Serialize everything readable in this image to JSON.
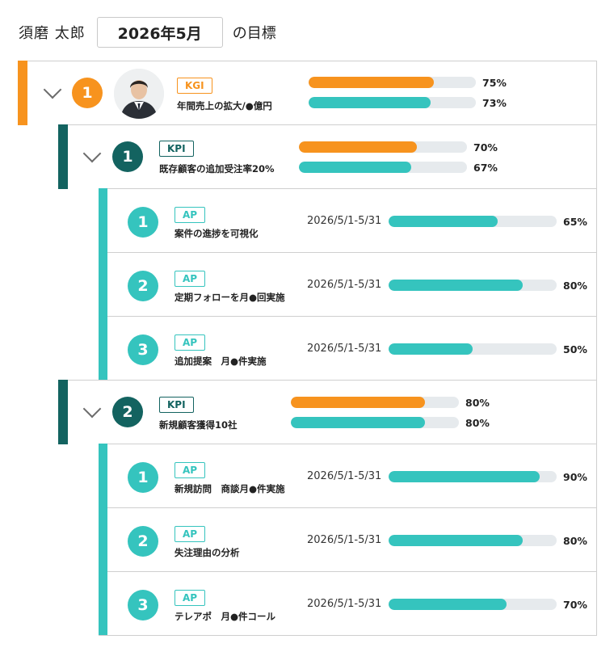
{
  "header": {
    "user_name": "須磨 太郎",
    "month": "2026年5月",
    "suffix": "の目標"
  },
  "kgi": {
    "number": "1",
    "tag": "KGI",
    "title": "年間売上の拡大/●億円",
    "bar1_label": "75%",
    "bar1_value": 75,
    "bar2_label": "73%",
    "bar2_value": 73
  },
  "kpis": [
    {
      "number": "1",
      "tag": "KPI",
      "title": "既存顧客の追加受注率20%",
      "bar1_label": "70%",
      "bar1_value": 70,
      "bar2_label": "67%",
      "bar2_value": 67,
      "aps": [
        {
          "number": "1",
          "tag": "AP",
          "title": "案件の進捗を可視化",
          "period": "2026/5/1-5/31",
          "pct_label": "65%",
          "value": 65
        },
        {
          "number": "2",
          "tag": "AP",
          "title": "定期フォローを月●回実施",
          "period": "2026/5/1-5/31",
          "pct_label": "80%",
          "value": 80
        },
        {
          "number": "3",
          "tag": "AP",
          "title": "追加提案　月●件実施",
          "period": "2026/5/1-5/31",
          "pct_label": "50%",
          "value": 50
        }
      ]
    },
    {
      "number": "2",
      "tag": "KPI",
      "title": "新規顧客獲得10社",
      "bar1_label": "80%",
      "bar1_value": 80,
      "bar2_label": "80%",
      "bar2_value": 80,
      "aps": [
        {
          "number": "1",
          "tag": "AP",
          "title": "新規訪問　商談月●件実施",
          "period": "2026/5/1-5/31",
          "pct_label": "90%",
          "value": 90
        },
        {
          "number": "2",
          "tag": "AP",
          "title": "失注理由の分析",
          "period": "2026/5/1-5/31",
          "pct_label": "80%",
          "value": 80
        },
        {
          "number": "3",
          "tag": "AP",
          "title": "テレアポ　月●件コール",
          "period": "2026/5/1-5/31",
          "pct_label": "70%",
          "value": 70
        }
      ]
    }
  ],
  "colors": {
    "orange": "#f7931e",
    "dark_teal": "#136360",
    "teal": "#35c4be",
    "track": "#e6eaed"
  }
}
